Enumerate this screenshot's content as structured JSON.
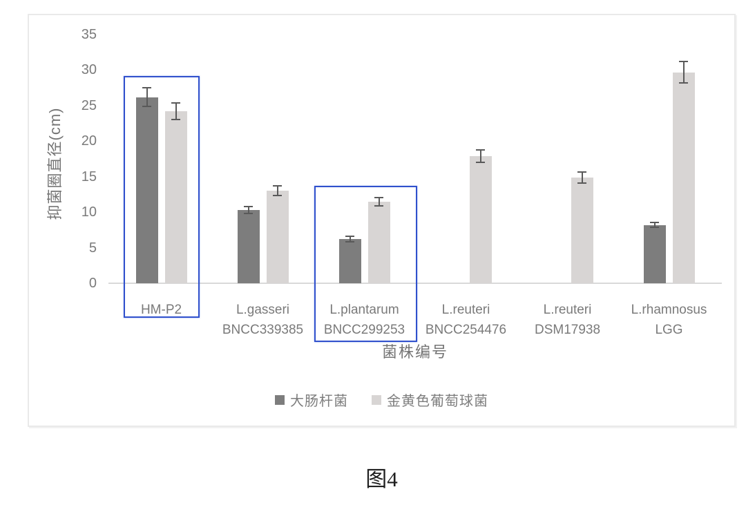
{
  "caption": {
    "text": "图4"
  },
  "colors": {
    "series_dark": "#7d7d7d",
    "series_light": "#d8d5d4",
    "error_bar": "#595959",
    "axis_line": "#d9d9d9",
    "axis_text": "#7a7a7a",
    "highlight_blue": "#3050cc",
    "panel_border": "#e9e9e9"
  },
  "chart_data": {
    "type": "bar",
    "title": "",
    "ylabel": "抑菌圈直径(cm)",
    "xlabel": "菌株编号",
    "ylim": [
      0,
      35
    ],
    "yticks": [
      0,
      5,
      10,
      15,
      20,
      25,
      30,
      35
    ],
    "grid": false,
    "legend_position": "bottom-center",
    "categories": [
      "HM-P2",
      "L.gasseri BNCC339385",
      "L.plantarum BNCC299253",
      "L.reuteri BNCC254476",
      "L.reuteri DSM17938",
      "L.rhamnosus LGG"
    ],
    "category_label_lines": [
      [
        "HM-P2"
      ],
      [
        "L.gasseri",
        "BNCC339385"
      ],
      [
        "L.plantarum",
        "BNCC299253"
      ],
      [
        "L.reuteri",
        "BNCC254476"
      ],
      [
        "L.reuteri",
        "DSM17938"
      ],
      [
        "L.rhamnosus",
        "LGG"
      ]
    ],
    "series": [
      {
        "name": "大肠杆菌",
        "color": "#7d7d7d",
        "values": [
          26.2,
          10.3,
          6.2,
          null,
          null,
          8.2
        ],
        "errors": [
          1.3,
          0.5,
          0.4,
          null,
          null,
          0.35
        ]
      },
      {
        "name": "金黄色葡萄球菌",
        "color": "#d8d5d4",
        "values": [
          24.2,
          13.0,
          11.5,
          17.9,
          14.9,
          29.7
        ],
        "errors": [
          1.2,
          0.7,
          0.6,
          0.9,
          0.8,
          1.5
        ]
      }
    ],
    "highlighted_categories": [
      "HM-P2",
      "L.plantarum BNCC299253"
    ],
    "highlight_color": "#3050cc"
  }
}
